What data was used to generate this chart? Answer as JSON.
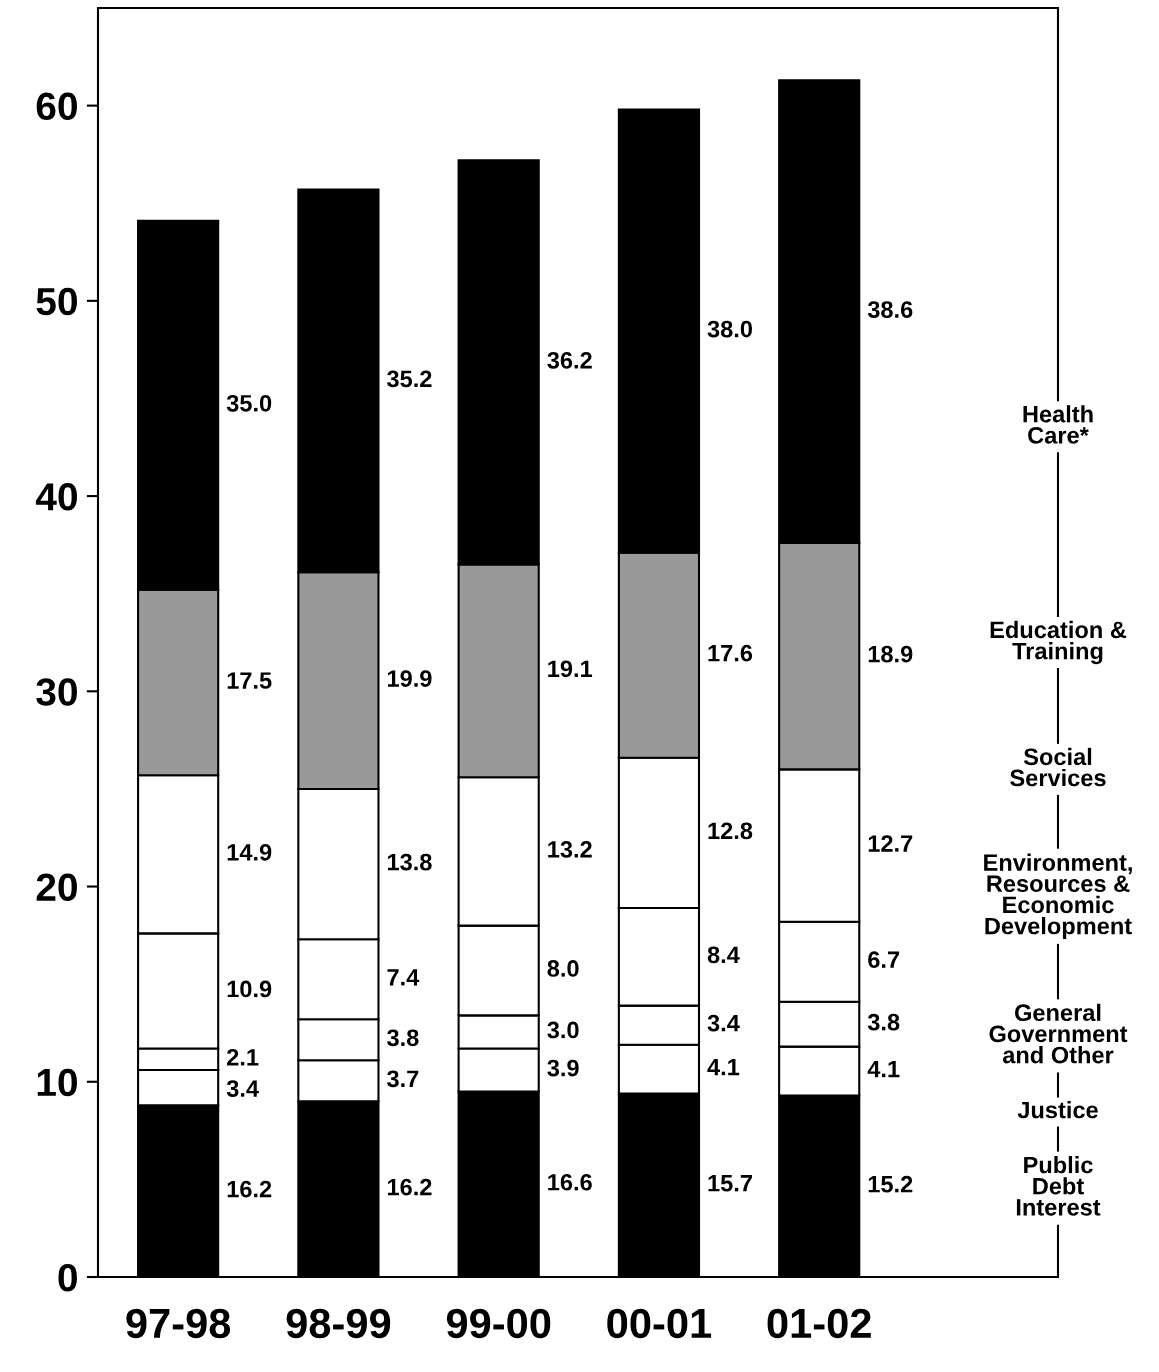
{
  "chart_data": {
    "type": "bar",
    "stacked": true,
    "categories": [
      "97-98",
      "98-99",
      "99-00",
      "00-01",
      "01-02"
    ],
    "ylim": [
      0,
      65
    ],
    "yticks": [
      0,
      10,
      20,
      30,
      40,
      50,
      60
    ],
    "grid": false,
    "legend": "right",
    "series": [
      {
        "name": "Public\nDebt\nInterest",
        "color": "#000000",
        "values": [
          8.8,
          9.0,
          9.5,
          9.4,
          9.3
        ]
      },
      {
        "name": "Justice",
        "color": "#ffffff",
        "values": [
          1.8,
          2.1,
          2.2,
          2.5,
          2.5
        ]
      },
      {
        "name": "General\nGovernment\nand Other",
        "color": "#ffffff",
        "values": [
          1.1,
          2.1,
          1.7,
          2.0,
          2.3
        ]
      },
      {
        "name": "Environment,\nResources &\nEconomic\nDevelopment",
        "color": "#ffffff",
        "values": [
          5.9,
          4.1,
          4.6,
          5.0,
          4.1
        ]
      },
      {
        "name": "Social\nServices",
        "color": "#ffffff",
        "values": [
          8.1,
          7.7,
          7.6,
          7.7,
          7.8
        ]
      },
      {
        "name": "Education &\nTraining",
        "color": "#999999",
        "values": [
          9.5,
          11.1,
          10.9,
          10.5,
          11.6
        ]
      },
      {
        "name": "Health\nCare*",
        "color": "#000000",
        "values": [
          18.9,
          19.6,
          20.7,
          22.7,
          23.7
        ]
      }
    ],
    "annotations": [
      "35.0",
      "17.5",
      "14.9",
      "10.9",
      "2.1",
      "3.4",
      "16.2",
      "35.2",
      "19.9",
      "13.8",
      "7.4",
      "3.8",
      "3.7",
      "16.2",
      "36.2",
      "19.1",
      "13.2",
      "8.0",
      "3.0",
      "3.9",
      "16.6",
      "38.0",
      "17.6",
      "12.8",
      "8.4",
      "3.4",
      "4.1",
      "15.7",
      "38.6",
      "18.9",
      "12.7",
      "6.7",
      "3.8",
      "4.1",
      "15.2"
    ]
  }
}
